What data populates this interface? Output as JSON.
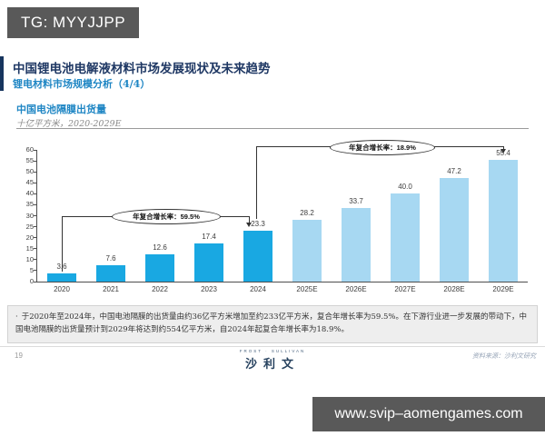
{
  "watermark": {
    "tg": "TG: MYYJJPP",
    "website": "www.svip–aomengames.com"
  },
  "header": {
    "title": "中国锂电池电解液材料市场发展现状及未来趋势",
    "subtitle": "锂电材料市场规模分析（4/4）"
  },
  "chart_data": {
    "type": "bar",
    "title": "中国电池隔膜出货量",
    "subtitle": "十亿平方米，2020-2029E",
    "categories": [
      "2020",
      "2021",
      "2022",
      "2023",
      "2024",
      "2025E",
      "2026E",
      "2027E",
      "2028E",
      "2029E"
    ],
    "values": [
      3.6,
      7.6,
      12.6,
      17.4,
      23.3,
      28.2,
      33.7,
      40.0,
      47.2,
      55.4
    ],
    "value_labels": [
      "3.6",
      "7.6",
      "12.6",
      "17.4",
      "23.3",
      "28.2",
      "33.7",
      "40.0",
      "47.2",
      "55.4"
    ],
    "ylim": [
      0,
      60
    ],
    "ytick_step": 5,
    "grid": false,
    "legend": "none",
    "historical_count": 5,
    "historical_color": "#19a8e2",
    "forecast_color": "#a7d8f2",
    "annotations": [
      {
        "label": "年复合增长率：59.5%",
        "from": "2020",
        "to": "2024"
      },
      {
        "label": "年复合增长率：18.9%",
        "from": "2024",
        "to": "2029E"
      }
    ]
  },
  "note": {
    "bullet": "·",
    "text": "于2020年至2024年，中国电池隔膜的出货量由约36亿平方米增加至约233亿平方米，复合年增长率为59.5%。在下游行业进一步发展的带动下，中国电池隔膜的出货量预计到2029年将达到约554亿平方米，自2024年起复合年增长率为18.9%。"
  },
  "footer": {
    "page_number": "19",
    "logo_top": "FROST · SULLIVAN",
    "logo_main": "沙利文",
    "source": "资料来源：沙利文研究"
  }
}
